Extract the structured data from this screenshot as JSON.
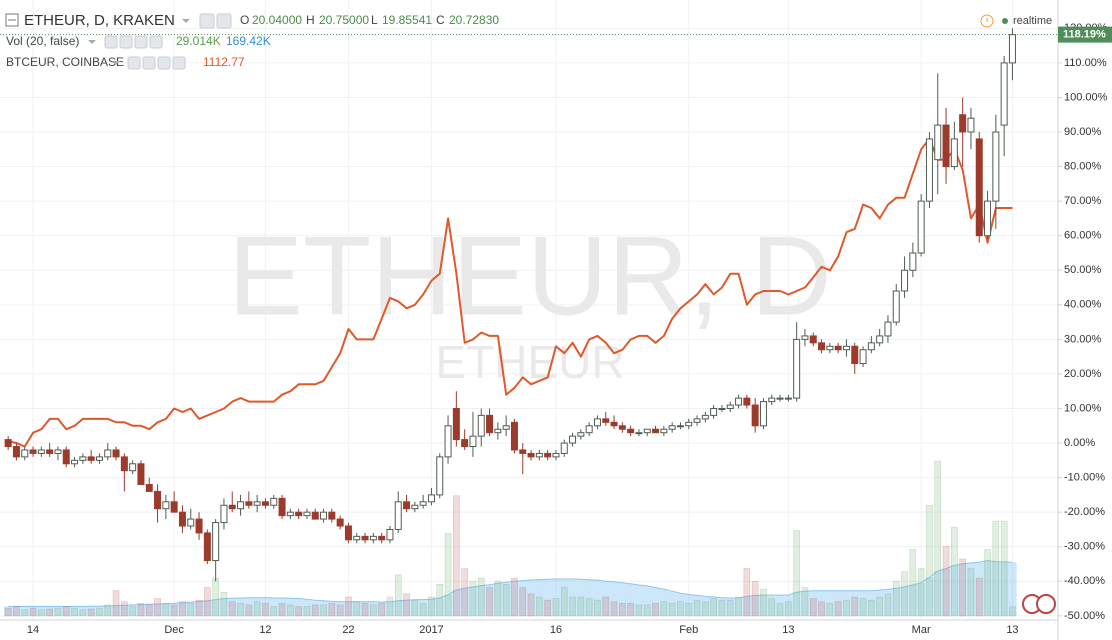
{
  "chart_data": {
    "type": "candlestick",
    "header": {
      "symbol": "ETHEUR, D, KRAKEN",
      "o": "O",
      "open": "20.04000",
      "h": "H",
      "high": "20.75000",
      "l": "L",
      "low": "19.85541",
      "c": "C",
      "close": "20.72830"
    },
    "realtime": "realtime",
    "watermark": "ETHEUR, D",
    "watermark_sub": "ETHEUR",
    "up_color": "#4e5d52",
    "down_color": "#9c3a2c",
    "last_label": "118.19%",
    "last_color": "#4f8d5b",
    "ylim": [
      -51.2,
      128.2
    ],
    "grid": true,
    "yticks": [
      {
        "value": -50,
        "label": "-50.00%"
      },
      {
        "value": -40,
        "label": "-40.00%"
      },
      {
        "value": -30,
        "label": "-30.00%"
      },
      {
        "value": -20,
        "label": "-20.00%"
      },
      {
        "value": -10,
        "label": "-10.00%"
      },
      {
        "value": 0,
        "label": "0.00%"
      },
      {
        "value": 10,
        "label": "10.00%"
      },
      {
        "value": 20,
        "label": "20.00%"
      },
      {
        "value": 30,
        "label": "30.00%"
      },
      {
        "value": 40,
        "label": "40.00%"
      },
      {
        "value": 50,
        "label": "50.00%"
      },
      {
        "value": 60,
        "label": "60.00%"
      },
      {
        "value": 70,
        "label": "70.00%"
      },
      {
        "value": 80,
        "label": "80.00%"
      },
      {
        "value": 90,
        "label": "90.00%"
      },
      {
        "value": 100,
        "label": "100.00%"
      },
      {
        "value": 110,
        "label": "110.00%"
      },
      {
        "value": 120,
        "label": "120.00%"
      }
    ],
    "categories": [
      null,
      null,
      null,
      "14",
      null,
      null,
      null,
      null,
      null,
      null,
      null,
      null,
      null,
      null,
      null,
      null,
      null,
      null,
      null,
      null,
      "Dec",
      null,
      null,
      null,
      null,
      null,
      null,
      null,
      null,
      null,
      null,
      "12",
      null,
      null,
      null,
      null,
      null,
      null,
      null,
      null,
      null,
      "22",
      null,
      null,
      null,
      null,
      null,
      null,
      null,
      null,
      null,
      "2017",
      null,
      null,
      null,
      null,
      null,
      null,
      null,
      null,
      null,
      null,
      null,
      null,
      null,
      null,
      "16",
      null,
      null,
      null,
      null,
      null,
      null,
      null,
      null,
      null,
      null,
      null,
      null,
      null,
      null,
      null,
      "Feb",
      null,
      null,
      null,
      null,
      null,
      null,
      null,
      null,
      null,
      null,
      null,
      "13",
      null,
      null,
      null,
      null,
      null,
      null,
      null,
      null,
      null,
      null,
      null,
      null,
      null,
      null,
      null,
      "Mar",
      null,
      null,
      null,
      null,
      null,
      null,
      null,
      null,
      null,
      null,
      "13"
    ],
    "candles": [
      [
        1,
        2,
        -2,
        -1
      ],
      [
        -1,
        0,
        -5,
        -4
      ],
      [
        -4,
        -1,
        -5,
        -2
      ],
      [
        -2,
        -1,
        -4,
        -3
      ],
      [
        -3,
        -1,
        -4,
        -2
      ],
      [
        -2,
        0,
        -4,
        -3
      ],
      [
        -3,
        -1,
        -5,
        -2
      ],
      [
        -2,
        -1,
        -7,
        -6
      ],
      [
        -6,
        -4,
        -7,
        -5
      ],
      [
        -5,
        -3,
        -6,
        -4
      ],
      [
        -4,
        -2,
        -6,
        -5
      ],
      [
        -5,
        -3,
        -6,
        -4
      ],
      [
        -4,
        0,
        -5,
        -2
      ],
      [
        -2,
        -1,
        -5,
        -4
      ],
      [
        -4,
        -3,
        -14,
        -8
      ],
      [
        -8,
        -5,
        -9,
        -6
      ],
      [
        -6,
        -5,
        -12,
        -12
      ],
      [
        -12,
        -10,
        -14,
        -14
      ],
      [
        -14,
        -12,
        -23,
        -19
      ],
      [
        -19,
        -15,
        -22,
        -17
      ],
      [
        -17,
        -14,
        -20,
        -20
      ],
      [
        -20,
        -18,
        -26,
        -24
      ],
      [
        -24,
        -19,
        -25,
        -22
      ],
      [
        -22,
        -20,
        -28,
        -26
      ],
      [
        -26,
        -25,
        -35,
        -34
      ],
      [
        -34,
        -22,
        -40,
        -23
      ],
      [
        -23,
        -16,
        -25,
        -18
      ],
      [
        -18,
        -14,
        -20,
        -19
      ],
      [
        -19,
        -15,
        -21,
        -17
      ],
      [
        -17,
        -14,
        -19,
        -18
      ],
      [
        -18,
        -15,
        -20,
        -17
      ],
      [
        -17,
        -16,
        -19,
        -18
      ],
      [
        -18,
        -15,
        -19,
        -16
      ],
      [
        -16,
        -15,
        -22,
        -21
      ],
      [
        -21,
        -19,
        -22,
        -20
      ],
      [
        -20,
        -19,
        -22,
        -21
      ],
      [
        -21,
        -19,
        -22,
        -20
      ],
      [
        -20,
        -19,
        -22,
        -22
      ],
      [
        -22,
        -19,
        -23,
        -20
      ],
      [
        -20,
        -19,
        -23,
        -22
      ],
      [
        -22,
        -21,
        -25,
        -24
      ],
      [
        -24,
        -23,
        -29,
        -28
      ],
      [
        -28,
        -26,
        -29,
        -27
      ],
      [
        -27,
        -26,
        -29,
        -28
      ],
      [
        -28,
        -26,
        -29,
        -27
      ],
      [
        -27,
        -26,
        -29,
        -28
      ],
      [
        -28,
        -24,
        -29,
        -25
      ],
      [
        -25,
        -14,
        -26,
        -17
      ],
      [
        -17,
        -15,
        -20,
        -19
      ],
      [
        -19,
        -17,
        -20,
        -18
      ],
      [
        -18,
        -15,
        -19,
        -17
      ],
      [
        -17,
        -13,
        -18,
        -15
      ],
      [
        -15,
        -3,
        -16,
        -4
      ],
      [
        -4,
        8,
        -6,
        5
      ],
      [
        10,
        15,
        -1,
        1
      ],
      [
        1,
        4,
        -2,
        -1
      ],
      [
        -1,
        9,
        -4,
        2
      ],
      [
        2,
        10,
        -1,
        8
      ],
      [
        8,
        10,
        2,
        3
      ],
      [
        3,
        6,
        1,
        4
      ],
      [
        4,
        8,
        2,
        5
      ],
      [
        6,
        7,
        -3,
        -2
      ],
      [
        -2,
        0,
        -9,
        -3
      ],
      [
        -3,
        -2,
        -5,
        -4
      ],
      [
        -4,
        -2,
        -5,
        -3
      ],
      [
        -3,
        -2,
        -5,
        -4
      ],
      [
        -4,
        -2,
        -5,
        -3
      ],
      [
        -3,
        1,
        -4,
        0
      ],
      [
        0,
        3,
        -1,
        2
      ],
      [
        2,
        4,
        1,
        3
      ],
      [
        3,
        6,
        2,
        5
      ],
      [
        5,
        8,
        4,
        7
      ],
      [
        7,
        9,
        5,
        6
      ],
      [
        6,
        8,
        4,
        5
      ],
      [
        5,
        6,
        3,
        4
      ],
      [
        4,
        5,
        2,
        3
      ],
      [
        3,
        4,
        2,
        3
      ],
      [
        3,
        4,
        2,
        4
      ],
      [
        4,
        5,
        3,
        3
      ],
      [
        3,
        5,
        2,
        4
      ],
      [
        4,
        6,
        3,
        5
      ],
      [
        5,
        6,
        4,
        5
      ],
      [
        5,
        7,
        4,
        6
      ],
      [
        6,
        8,
        5,
        7
      ],
      [
        7,
        9,
        6,
        8
      ],
      [
        8,
        11,
        7,
        10
      ],
      [
        10,
        11,
        9,
        10
      ],
      [
        10,
        12,
        9,
        11
      ],
      [
        11,
        14,
        10,
        13
      ],
      [
        13,
        14,
        10,
        11
      ],
      [
        11,
        13,
        3,
        5
      ],
      [
        5,
        13,
        4,
        12
      ],
      [
        12,
        14,
        11,
        13
      ],
      [
        13,
        14,
        12,
        13
      ],
      [
        13,
        14,
        12,
        13
      ],
      [
        13,
        35,
        12,
        30
      ],
      [
        30,
        33,
        28,
        31
      ],
      [
        31,
        32,
        28,
        29
      ],
      [
        29,
        30,
        26,
        27
      ],
      [
        27,
        29,
        26,
        28
      ],
      [
        28,
        29,
        26,
        27
      ],
      [
        27,
        30,
        25,
        28
      ],
      [
        28,
        29,
        20,
        23
      ],
      [
        23,
        28,
        22,
        27
      ],
      [
        27,
        31,
        26,
        29
      ],
      [
        29,
        33,
        28,
        31
      ],
      [
        31,
        37,
        29,
        35
      ],
      [
        35,
        46,
        34,
        44
      ],
      [
        44,
        54,
        42,
        50
      ],
      [
        50,
        58,
        48,
        55
      ],
      [
        55,
        72,
        54,
        70
      ],
      [
        70,
        90,
        68,
        88
      ],
      [
        82,
        107,
        72,
        92
      ],
      [
        92,
        97,
        75,
        80
      ],
      [
        80,
        93,
        79,
        88
      ],
      [
        95,
        100,
        80,
        90
      ],
      [
        90,
        97,
        85,
        94
      ],
      [
        88,
        90,
        58,
        60
      ],
      [
        60,
        73,
        59,
        70
      ],
      [
        70,
        95,
        62,
        90
      ],
      [
        92,
        112,
        83,
        110
      ],
      [
        110,
        120,
        105,
        118.19
      ]
    ],
    "series": [
      {
        "name": "BTCEUR, COINBASE",
        "color": "#e0592a",
        "value_label": "1112.77",
        "values": [
          0.6,
          0,
          -1,
          3,
          4,
          7,
          7,
          4,
          5,
          7,
          7,
          7,
          7,
          6,
          6,
          5,
          5,
          4,
          6,
          7,
          10,
          9,
          10,
          7,
          8,
          9,
          10,
          12,
          13,
          12,
          12,
          12,
          12,
          14,
          15,
          17,
          17,
          17,
          18,
          22,
          26,
          33,
          30,
          30,
          30,
          36,
          42,
          41,
          39,
          40,
          43,
          47,
          49,
          65,
          49,
          29,
          30,
          32,
          31,
          31,
          14,
          16,
          19,
          17,
          18,
          19,
          28,
          26,
          29,
          25,
          30,
          31,
          29,
          26,
          27,
          30,
          31,
          31,
          29,
          31,
          36,
          39,
          41,
          43,
          46,
          43,
          45,
          49,
          49,
          40,
          43,
          44,
          44,
          44,
          43,
          44,
          45,
          48,
          51,
          50,
          54,
          61,
          62,
          69,
          68,
          65,
          69,
          71,
          71,
          78,
          85,
          88,
          82,
          82,
          85,
          79,
          65,
          69,
          58,
          68,
          68,
          68
        ]
      }
    ],
    "volume": {
      "name": "Vol (20, false)",
      "value_label": "29.014K",
      "ma_label": "169.42K",
      "color": "#5d9c4a",
      "ma_color": "#2d8ed6",
      "values": [
        25,
        30,
        20,
        25,
        20,
        22,
        25,
        30,
        25,
        20,
        22,
        25,
        35,
        80,
        45,
        30,
        40,
        35,
        55,
        40,
        35,
        45,
        40,
        50,
        90,
        120,
        75,
        45,
        40,
        35,
        45,
        40,
        30,
        40,
        35,
        30,
        30,
        35,
        35,
        40,
        35,
        60,
        45,
        40,
        35,
        40,
        60,
        130,
        70,
        50,
        40,
        60,
        100,
        260,
        380,
        150,
        110,
        120,
        90,
        110,
        100,
        120,
        90,
        70,
        60,
        50,
        55,
        90,
        60,
        60,
        55,
        50,
        60,
        45,
        40,
        40,
        35,
        35,
        40,
        45,
        40,
        45,
        40,
        50,
        45,
        55,
        50,
        50,
        60,
        150,
        110,
        85,
        55,
        40,
        45,
        270,
        90,
        55,
        45,
        40,
        45,
        50,
        60,
        55,
        50,
        60,
        70,
        110,
        140,
        210,
        150,
        350,
        490,
        220,
        280,
        180,
        150,
        120,
        210,
        300,
        300,
        29.014
      ],
      "ma": [
        30,
        30,
        30,
        30,
        30,
        30,
        30,
        30,
        30,
        30,
        31,
        31,
        32,
        33,
        34,
        35,
        36,
        37,
        38,
        39,
        40,
        42,
        44,
        46,
        48,
        52,
        55,
        56,
        57,
        58,
        58,
        58,
        57,
        57,
        56,
        55,
        53,
        50,
        48,
        46,
        45,
        45,
        45,
        45,
        45,
        44,
        45,
        48,
        50,
        52,
        52,
        53,
        57,
        67,
        82,
        88,
        92,
        96,
        99,
        103,
        107,
        110,
        112,
        114,
        115,
        116,
        117,
        117,
        117,
        116,
        115,
        113,
        110,
        108,
        105,
        102,
        98,
        95,
        90,
        85,
        78,
        72,
        68,
        65,
        62,
        60,
        58,
        57,
        57,
        62,
        65,
        66,
        66,
        66,
        66,
        75,
        78,
        80,
        80,
        80,
        80,
        80,
        80,
        80,
        80,
        82,
        84,
        88,
        92,
        98,
        105,
        122,
        142,
        150,
        160,
        165,
        168,
        170,
        175,
        172,
        171,
        169.42
      ]
    }
  }
}
